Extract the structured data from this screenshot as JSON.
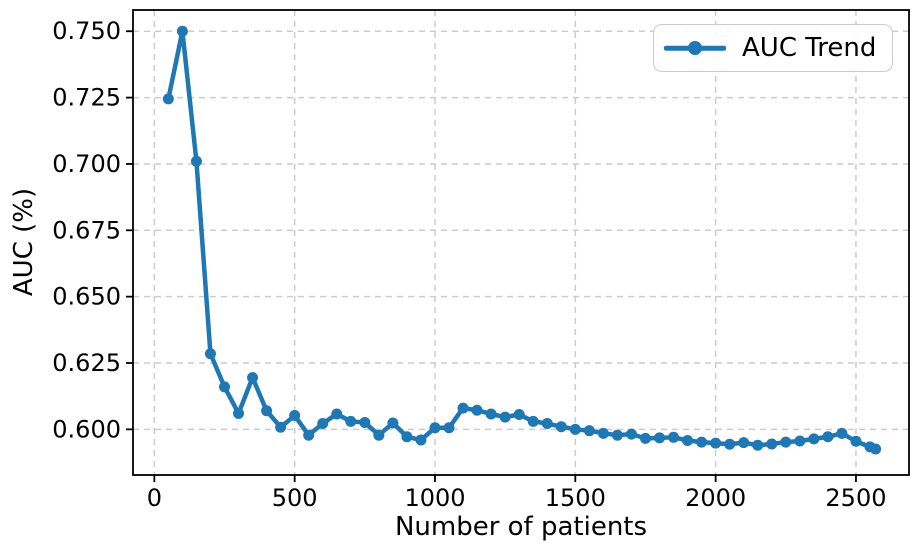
{
  "chart_data": {
    "type": "line",
    "title": "",
    "xlabel": "Number of patients",
    "ylabel": "AUC (%)",
    "grid": true,
    "legend_position": "upper right",
    "colors": {
      "line": "#1f77b4",
      "grid": "#cccccc",
      "axis": "#000000",
      "legend_border": "#cccccc",
      "background": "#ffffff"
    },
    "xlim": [
      -76,
      2689
    ],
    "ylim": [
      0.5828,
      0.758
    ],
    "xticks": [
      0,
      500,
      1000,
      1500,
      2000,
      2500
    ],
    "xtick_labels": [
      "0",
      "500",
      "1000",
      "1500",
      "2000",
      "2500"
    ],
    "yticks": [
      0.6,
      0.625,
      0.65,
      0.675,
      0.7,
      0.725,
      0.75
    ],
    "ytick_labels": [
      "0.600",
      "0.625",
      "0.650",
      "0.675",
      "0.700",
      "0.725",
      "0.750"
    ],
    "series": [
      {
        "name": "AUC Trend",
        "marker": "circle",
        "x": [
          50,
          100,
          150,
          200,
          250,
          300,
          350,
          400,
          450,
          500,
          550,
          600,
          650,
          700,
          750,
          800,
          850,
          900,
          950,
          1000,
          1050,
          1100,
          1150,
          1200,
          1250,
          1300,
          1350,
          1400,
          1450,
          1500,
          1550,
          1600,
          1650,
          1700,
          1750,
          1800,
          1850,
          1900,
          1950,
          2000,
          2050,
          2100,
          2150,
          2200,
          2250,
          2300,
          2350,
          2400,
          2450,
          2500,
          2550,
          2570
        ],
        "y": [
          0.7245,
          0.75,
          0.701,
          0.6285,
          0.616,
          0.606,
          0.6195,
          0.607,
          0.6008,
          0.6052,
          0.5978,
          0.6022,
          0.6058,
          0.603,
          0.6026,
          0.5978,
          0.6024,
          0.5972,
          0.596,
          0.6006,
          0.6006,
          0.608,
          0.6072,
          0.6058,
          0.6046,
          0.6056,
          0.603,
          0.6022,
          0.601,
          0.6,
          0.5995,
          0.5985,
          0.5978,
          0.5982,
          0.5966,
          0.5968,
          0.597,
          0.5958,
          0.5952,
          0.5948,
          0.5944,
          0.595,
          0.594,
          0.5945,
          0.5952,
          0.5956,
          0.5964,
          0.5972,
          0.5985,
          0.5955,
          0.5934,
          0.5926
        ]
      }
    ]
  }
}
